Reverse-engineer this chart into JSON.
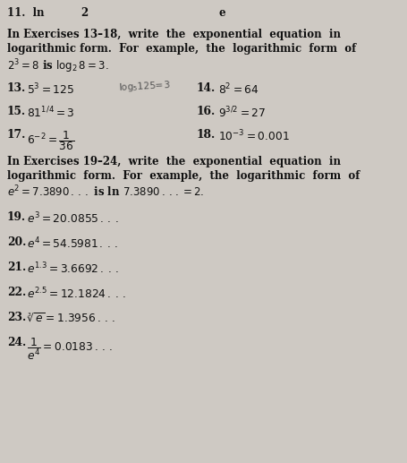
{
  "bg_color": "#cec9c3",
  "text_color": "#111111",
  "figsize": [
    4.56,
    5.17
  ],
  "dpi": 100,
  "top_line_left": "11.  ln",
  "top_line_mid": "2",
  "top_line_right": "e",
  "header1_line1": "In Exercises 13–18,  write  the  exponential  equation  in",
  "header1_line2": "logarithmic form.  For  example,  the  logarithmic  form  of",
  "header1_line3_a": "$2^3 = 8$ is $\\mathrm{log}_2\\,8 = 3.$",
  "left_exercises": [
    [
      "13.",
      "$5^3 = 125$"
    ],
    [
      "15.",
      "$81^{1/4} = 3$"
    ],
    [
      "17.",
      "$6^{-2} = \\dfrac{1}{36}$"
    ]
  ],
  "right_exercises": [
    [
      "14.",
      "$8^2 = 64$"
    ],
    [
      "16.",
      "$9^{3/2} = 27$"
    ],
    [
      "18.",
      "$10^{-3} = 0.001$"
    ]
  ],
  "handwriting": "$\\mathit{\\log_5\\!125\\!=\\!3}$",
  "header2_line1": "In Exercises 19–24,  write  the  exponential  equation  in",
  "header2_line2": "logarithmic  form.  For  example,  the  logarithmic  form  of",
  "header2_line3": "$e^2 = 7.3890\\,{.}\\,{.}\\,{.}$ is ln $7.3890\\,{.}\\,{.}\\,{.} = 2.$",
  "exercises_1924": [
    [
      "19.",
      "$e^3 = 20.0855\\,{.}\\,{.}\\,{.}$"
    ],
    [
      "20.",
      "$e^4 = 54.5981\\,{.}\\,{.}\\,{.}$"
    ],
    [
      "21.",
      "$e^{1.3} = 3.6692\\,{.}\\,{.}\\,{.}$"
    ],
    [
      "22.",
      "$e^{2.5} = 12.1824\\,{.}\\,{.}\\,{.}$"
    ],
    [
      "23.",
      "$\\sqrt[3]{e} = 1.3956\\,{.}\\,{.}\\,{.}$"
    ],
    [
      "24.",
      "$\\dfrac{1}{e^4} = 0.0183\\,{.}\\,{.}\\,{.}$"
    ]
  ]
}
